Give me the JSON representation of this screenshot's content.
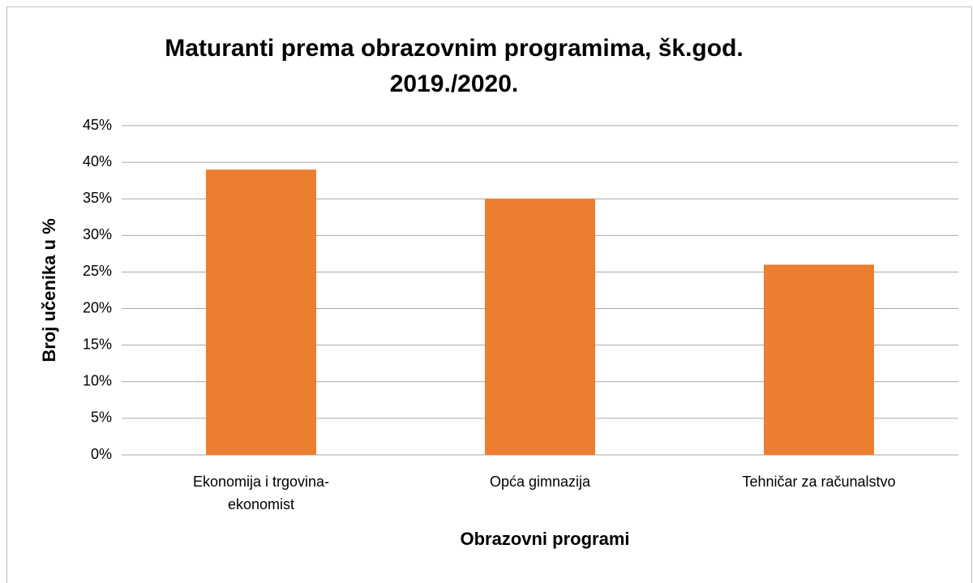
{
  "chart_data": {
    "type": "bar",
    "title": "Maturanti prema obrazovnim programima, šk.god. 2019./2020.",
    "x_label": "Obrazovni programi",
    "y_label": "Broj učenika u %",
    "categories": [
      "Ekonomija i trgovina-ekonomist",
      "Opća gimnazija",
      "Tehničar za računalstvo"
    ],
    "values": [
      39,
      35,
      26
    ],
    "color": "#ed7d31",
    "ylim": [
      0,
      45
    ],
    "yticks": [
      {
        "value": 0,
        "label": "0%"
      },
      {
        "value": 5,
        "label": "5%"
      },
      {
        "value": 10,
        "label": "10%"
      },
      {
        "value": 15,
        "label": "15%"
      },
      {
        "value": 20,
        "label": "20%"
      },
      {
        "value": 25,
        "label": "25%"
      },
      {
        "value": 30,
        "label": "30%"
      },
      {
        "value": 35,
        "label": "35%"
      },
      {
        "value": 40,
        "label": "40%"
      },
      {
        "value": 45,
        "label": "45%"
      }
    ],
    "grid": true
  }
}
